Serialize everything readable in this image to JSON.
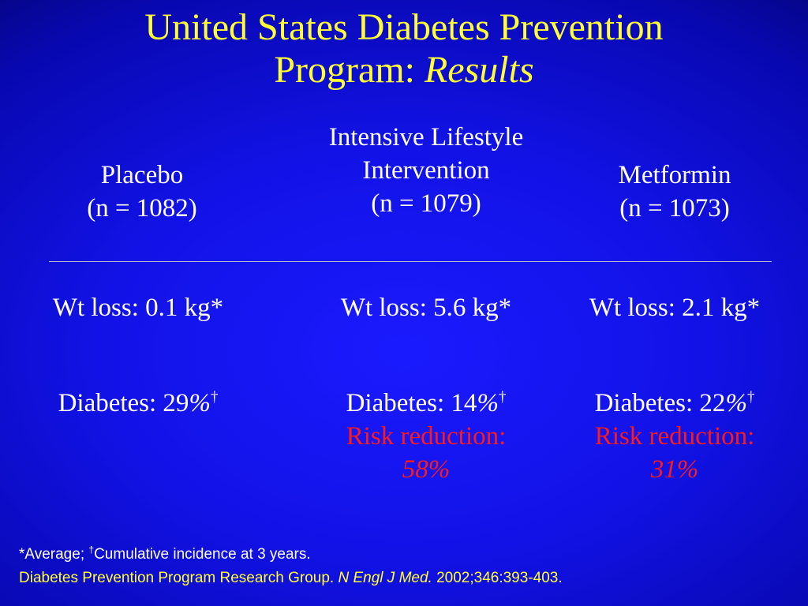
{
  "colors": {
    "title": "#ffff33",
    "body_text": "#ffffff",
    "highlight": "#ff1a1a",
    "citation": "#ffff33",
    "background": "#1212e6"
  },
  "title": {
    "line1": "United States Diabetes Prevention",
    "line2_prefix": "Program:",
    "line2_italic": "Results"
  },
  "columns": [
    {
      "header_lines": [
        "Placebo",
        "(n = 1082)"
      ],
      "weight_loss": "Wt loss: 0.1 kg*",
      "diabetes_label": "Diabetes: 29",
      "diabetes_pct": "%",
      "diabetes_mark": "†"
    },
    {
      "header_lines": [
        "Intensive Lifestyle",
        "Intervention",
        "(n = 1079)"
      ],
      "weight_loss": "Wt loss: 5.6 kg*",
      "diabetes_label": "Diabetes: 14",
      "diabetes_pct": "%",
      "diabetes_mark": "†",
      "risk_label": "Risk reduction:",
      "risk_value": "58%"
    },
    {
      "header_lines": [
        "Metformin",
        "(n = 1073)"
      ],
      "weight_loss": "Wt loss: 2.1 kg*",
      "diabetes_label": "Diabetes: 22",
      "diabetes_pct": "%",
      "diabetes_mark": "†",
      "risk_label": "Risk reduction:",
      "risk_value": "31%"
    }
  ],
  "footer": {
    "note_prefix": "*Average; ",
    "note_mark": "†",
    "note_text": "Cumulative incidence at 3 years.",
    "citation_prefix": "Diabetes Prevention Program Research Group. ",
    "citation_journal": "N Engl J Med.",
    "citation_suffix": " 2002;346:393-403."
  }
}
